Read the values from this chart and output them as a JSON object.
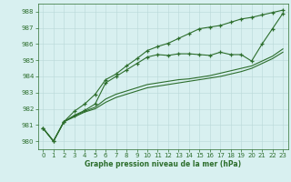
{
  "x": [
    0,
    1,
    2,
    3,
    4,
    5,
    6,
    7,
    8,
    9,
    10,
    11,
    12,
    13,
    14,
    15,
    16,
    17,
    18,
    19,
    20,
    21,
    22,
    23
  ],
  "line1": [
    980.8,
    980.0,
    981.2,
    981.6,
    981.9,
    982.3,
    983.6,
    984.0,
    984.4,
    984.8,
    985.2,
    985.35,
    985.3,
    985.4,
    985.4,
    985.35,
    985.3,
    985.5,
    985.35,
    985.35,
    984.95,
    986.0,
    986.95,
    987.9
  ],
  "line2": [
    980.8,
    980.0,
    981.2,
    981.55,
    981.85,
    982.1,
    982.6,
    982.9,
    983.1,
    983.3,
    983.5,
    983.6,
    983.7,
    983.8,
    983.85,
    983.95,
    984.05,
    984.2,
    984.35,
    984.5,
    984.65,
    984.95,
    985.25,
    985.7
  ],
  "line3": [
    980.8,
    980.0,
    981.2,
    981.5,
    981.8,
    982.0,
    982.4,
    982.7,
    982.9,
    983.1,
    983.3,
    983.4,
    983.5,
    983.6,
    983.7,
    983.8,
    983.9,
    984.0,
    984.15,
    984.3,
    984.5,
    984.8,
    985.1,
    985.5
  ],
  "line4": [
    980.8,
    980.0,
    981.2,
    981.85,
    982.3,
    982.9,
    983.8,
    984.15,
    984.65,
    985.1,
    985.6,
    985.85,
    986.05,
    986.35,
    986.65,
    986.95,
    987.05,
    987.15,
    987.35,
    987.55,
    987.65,
    987.8,
    987.95,
    988.1
  ],
  "line_color": "#2d6e2d",
  "bg_color": "#d8f0f0",
  "grid_color": "#b8d8d8",
  "ylim": [
    979.5,
    988.5
  ],
  "xlim": [
    -0.5,
    23.5
  ],
  "yticks": [
    980,
    981,
    982,
    983,
    984,
    985,
    986,
    987,
    988
  ],
  "xticks": [
    0,
    1,
    2,
    3,
    4,
    5,
    6,
    7,
    8,
    9,
    10,
    11,
    12,
    13,
    14,
    15,
    16,
    17,
    18,
    19,
    20,
    21,
    22,
    23
  ],
  "xlabel": "Graphe pression niveau de la mer (hPa)",
  "marker": "+",
  "markersize": 3.5,
  "linewidth": 0.8,
  "tick_fontsize": 5.0,
  "xlabel_fontsize": 5.5
}
